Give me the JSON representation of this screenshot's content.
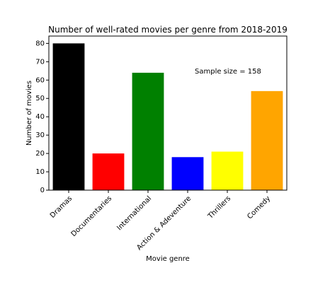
{
  "chart_data": {
    "type": "bar",
    "title": "Number of well-rated movies per genre from 2018-2019",
    "xlabel": "Movie genre",
    "ylabel": "Number of movies",
    "categories": [
      "Dramas",
      "Documentaries",
      "International",
      "Action & Adeventure",
      "Thrillers",
      "Comedy"
    ],
    "values": [
      80,
      20,
      64,
      18,
      21,
      54
    ],
    "colors": [
      "#000000",
      "#ff0000",
      "#008000",
      "#0000ff",
      "#ffff00",
      "#ffa500"
    ],
    "ylim": [
      0,
      84
    ],
    "yticks": [
      0,
      10,
      20,
      30,
      40,
      50,
      60,
      70,
      80
    ],
    "annotation": "Sample size = 158",
    "grid": false,
    "legend": "none"
  }
}
